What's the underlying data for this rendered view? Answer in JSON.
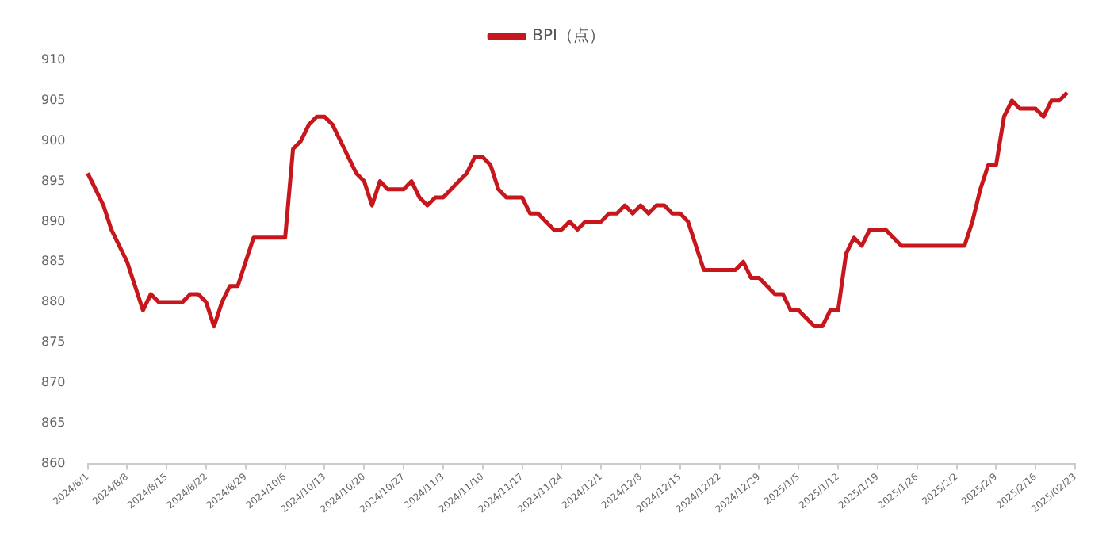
{
  "chart_data": {
    "type": "line",
    "legend": "top",
    "grid": false,
    "marker": "none",
    "line_style": "solid",
    "categories": [
      "2024/8/1",
      null,
      null,
      null,
      null,
      "2024/8/8",
      null,
      null,
      null,
      null,
      "2024/8/15",
      null,
      null,
      null,
      null,
      "2024/8/22",
      null,
      null,
      null,
      null,
      "2024/8/29",
      null,
      null,
      null,
      null,
      "2024/10/6",
      null,
      null,
      null,
      null,
      "2024/10/13",
      null,
      null,
      null,
      null,
      "2024/10/20",
      null,
      null,
      null,
      null,
      "2024/10/27",
      null,
      null,
      null,
      null,
      "2024/11/3",
      null,
      null,
      null,
      null,
      "2024/11/10",
      null,
      null,
      null,
      null,
      "2024/11/17",
      null,
      null,
      null,
      null,
      "2024/11/24",
      null,
      null,
      null,
      null,
      "2024/12/1",
      null,
      null,
      null,
      null,
      "2024/12/8",
      null,
      null,
      null,
      null,
      "2024/12/15",
      null,
      null,
      null,
      null,
      "2024/12/22",
      null,
      null,
      null,
      null,
      "2024/12/29",
      null,
      null,
      null,
      null,
      "2025/1/5",
      null,
      null,
      null,
      null,
      "2025/1/12",
      null,
      null,
      null,
      null,
      "2025/1/19",
      null,
      null,
      null,
      null,
      "2025/1/26",
      null,
      null,
      null,
      null,
      "2025/2/2",
      null,
      null,
      null,
      null,
      "2025/2/9",
      null,
      null,
      null,
      null,
      "2025/2/16",
      null,
      null,
      null,
      null,
      "2025/02/23"
    ],
    "series": [
      {
        "name": "BPI（点）",
        "color": "#c8161d",
        "values": [
          896,
          894,
          892,
          889,
          887,
          885,
          882,
          879,
          881,
          880,
          880,
          880,
          880,
          881,
          881,
          880,
          877,
          880,
          882,
          882,
          885,
          888,
          888,
          888,
          888,
          888,
          899,
          900,
          902,
          903,
          903,
          902,
          900,
          898,
          896,
          895,
          892,
          895,
          894,
          894,
          894,
          895,
          893,
          892,
          893,
          893,
          894,
          895,
          896,
          898,
          898,
          897,
          894,
          893,
          893,
          893,
          891,
          891,
          890,
          889,
          889,
          890,
          889,
          890,
          890,
          890,
          891,
          891,
          892,
          891,
          892,
          891,
          892,
          892,
          891,
          891,
          890,
          887,
          884,
          884,
          884,
          884,
          884,
          885,
          883,
          883,
          882,
          881,
          881,
          879,
          879,
          878,
          877,
          877,
          879,
          879,
          886,
          888,
          887,
          889,
          889,
          889,
          888,
          887,
          887,
          887,
          887,
          887,
          887,
          887,
          887,
          887,
          890,
          894,
          897,
          897,
          903,
          905,
          904,
          904,
          904,
          903,
          905,
          905,
          906,
          null
        ]
      }
    ],
    "ylim": [
      860,
      910
    ],
    "yticks": [
      860,
      865,
      870,
      875,
      880,
      885,
      890,
      895,
      900,
      905,
      910
    ]
  }
}
